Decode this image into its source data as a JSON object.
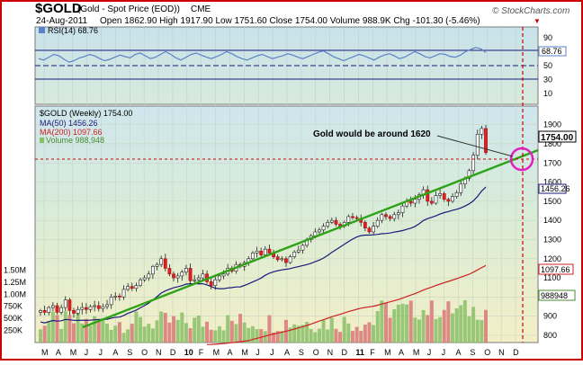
{
  "header": {
    "symbol": "$GOLD",
    "description": "(Gold - Spot Price (EOD))",
    "exchange": "CME",
    "date": "24-Aug-2011",
    "stats": "Open 1862.90  High 1917.90  Low 1751.60  Close 1754.00  Volume 988.9K  Chg -101.30 (-5.46%)",
    "chg_arrow": "▼",
    "watermark": "© StockCharts.com"
  },
  "rsi": {
    "label": "RSI(14) 68.76",
    "value_badge": "68.76",
    "ticks": [
      "90",
      "70",
      "50",
      "30",
      "10"
    ],
    "values": [
      60,
      58,
      62,
      66,
      64,
      59,
      55,
      57,
      61,
      63,
      66,
      64,
      60,
      57,
      59,
      62,
      65,
      63,
      61,
      66,
      68,
      64,
      60,
      62,
      66,
      70,
      66,
      61,
      58,
      62,
      66,
      68,
      65,
      62,
      60,
      63,
      66,
      70,
      67,
      63,
      60,
      58,
      61,
      64,
      66,
      63,
      60,
      62,
      64,
      67,
      65,
      62,
      60,
      63,
      66,
      69,
      71,
      67,
      63,
      60,
      57,
      60,
      63,
      66,
      64,
      61,
      58,
      62,
      65,
      67,
      64,
      60,
      62,
      66,
      70,
      67,
      63,
      61,
      64,
      67,
      66,
      63,
      62,
      65,
      70,
      73,
      76,
      74,
      69
    ]
  },
  "price": {
    "legend_title": "$GOLD (Weekly) 1754.00",
    "ma50_label": "MA(50) 1456.26",
    "ma200_label": "MA(200) 1097.66",
    "volume_label": "Volume 988,948",
    "annotation": "Gold would be around 1620",
    "last_price_badge": "1754.00",
    "ma50_badge": "1456.26",
    "ma200_badge": "1097.66",
    "volume_badge": "988948",
    "price_ticks": [
      "1900",
      "1800",
      "1700",
      "1600",
      "1500",
      "1400",
      "1300",
      "1200",
      "1100",
      "1000",
      "900",
      "800"
    ],
    "volume_ticks": [
      "1.50M",
      "1.25M",
      "1.00M",
      "750K",
      "500K",
      "250K"
    ],
    "months": [
      "M",
      "A",
      "M",
      "J",
      "J",
      "A",
      "S",
      "O",
      "N",
      "D",
      "10",
      "F",
      "M",
      "A",
      "M",
      "J",
      "J",
      "A",
      "S",
      "O",
      "N",
      "D",
      "11",
      "F",
      "M",
      "A",
      "M",
      "J",
      "J",
      "A",
      "S",
      "O",
      "N",
      "D"
    ]
  },
  "colors": {
    "rsi_line": "#5b82c8",
    "ma50": "#1a1a7a",
    "ma200": "#cc2222",
    "trendline": "#2ea318",
    "volume_up": "#88c068",
    "volume_down": "#d97878",
    "circle": "#e020c0",
    "frame": "#cc0000"
  },
  "chart_data": {
    "type": "candlestick",
    "title": "$GOLD (Gold - Spot Price (EOD)) CME",
    "date": "24-Aug-2011",
    "period": "weekly",
    "x_start": "2009-05",
    "x_end": "2011-09",
    "ylim": [
      800,
      1950
    ],
    "close_series": [
      930,
      920,
      945,
      955,
      920,
      945,
      985,
      930,
      915,
      935,
      945,
      935,
      950,
      955,
      940,
      950,
      960,
      1000,
      1005,
      1000,
      1040,
      1055,
      1045,
      1060,
      1090,
      1100,
      1120,
      1160,
      1170,
      1200,
      1150,
      1120,
      1100,
      1110,
      1130,
      1150,
      1085,
      1090,
      1100,
      1120,
      1080,
      1060,
      1090,
      1110,
      1120,
      1150,
      1135,
      1170,
      1160,
      1180,
      1200,
      1230,
      1240,
      1220,
      1250,
      1230,
      1210,
      1195,
      1200,
      1180,
      1210,
      1235,
      1245,
      1270,
      1300,
      1320,
      1340,
      1350,
      1370,
      1390,
      1400,
      1380,
      1370,
      1390,
      1420,
      1415,
      1410,
      1390,
      1360,
      1340,
      1370,
      1400,
      1430,
      1420,
      1410,
      1430,
      1440,
      1475,
      1500,
      1490,
      1510,
      1535,
      1560,
      1500,
      1490,
      1530,
      1540,
      1510,
      1500,
      1525,
      1545,
      1590,
      1620,
      1660,
      1740,
      1850,
      1880,
      1754
    ],
    "ma50": {
      "name": "MA(50)",
      "last": 1456.26
    },
    "ma200": {
      "name": "MA(200)",
      "last": 1097.66
    },
    "volume": {
      "name": "Volume",
      "last": 988948,
      "ylim": [
        0,
        1500000
      ]
    },
    "rsi": {
      "name": "RSI(14)",
      "last": 68.76,
      "ylim": [
        0,
        100
      ]
    },
    "annotations": [
      {
        "text": "Gold would be around 1620"
      }
    ],
    "projection": {
      "date": "2011-11",
      "value": 1620
    }
  }
}
